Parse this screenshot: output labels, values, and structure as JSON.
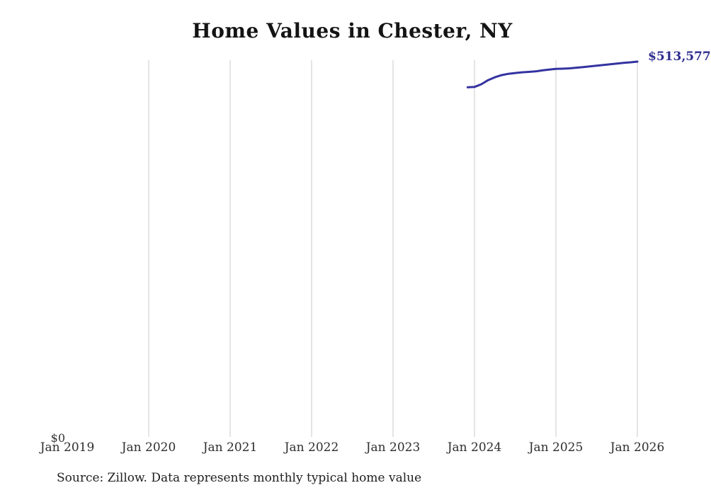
{
  "title": "Home Values in Chester, NY",
  "source": "Source: Zillow. Data represents monthly typical home value",
  "chart_data": {
    "type": "line",
    "title": "Home Values in Chester, NY",
    "series_name": "Monthly typical home value",
    "x": [
      "Dec 2023",
      "Jan 2024",
      "Feb 2024",
      "Mar 2024",
      "Apr 2024",
      "May 2024",
      "Jun 2024",
      "Jul 2024",
      "Aug 2024",
      "Sep 2024",
      "Oct 2024",
      "Nov 2024",
      "Dec 2024",
      "Jan 2025",
      "Feb 2025",
      "Mar 2025",
      "Apr 2025",
      "May 2025",
      "Jun 2025",
      "Jul 2025",
      "Aug 2025",
      "Sep 2025",
      "Oct 2025",
      "Nov 2025",
      "Dec 2025",
      "Jan 2026"
    ],
    "values": [
      478600,
      479100,
      482700,
      488300,
      492300,
      495200,
      497000,
      498100,
      499000,
      499600,
      500300,
      501600,
      502800,
      503700,
      503900,
      504400,
      505300,
      506200,
      507100,
      508000,
      509000,
      510000,
      510900,
      511900,
      512600,
      513577
    ],
    "x_tick_labels": [
      "Jan 2019",
      "Jan 2020",
      "Jan 2021",
      "Jan 2022",
      "Jan 2023",
      "Jan 2024",
      "Jan 2025",
      "Jan 2026"
    ],
    "y_zero_label": "$0",
    "end_label": "$513,577",
    "ylim": [
      0,
      516000
    ],
    "xlabel": "",
    "ylabel": "",
    "grid": "vertical-only",
    "legend": "none",
    "colors": {
      "line": "#3333a0",
      "end_label": "#2c2c8e",
      "gridline": "#cbcbcb",
      "title": "#141414",
      "tick": "#2e2e2e",
      "source": "#202020",
      "background": "#ffffff"
    }
  }
}
